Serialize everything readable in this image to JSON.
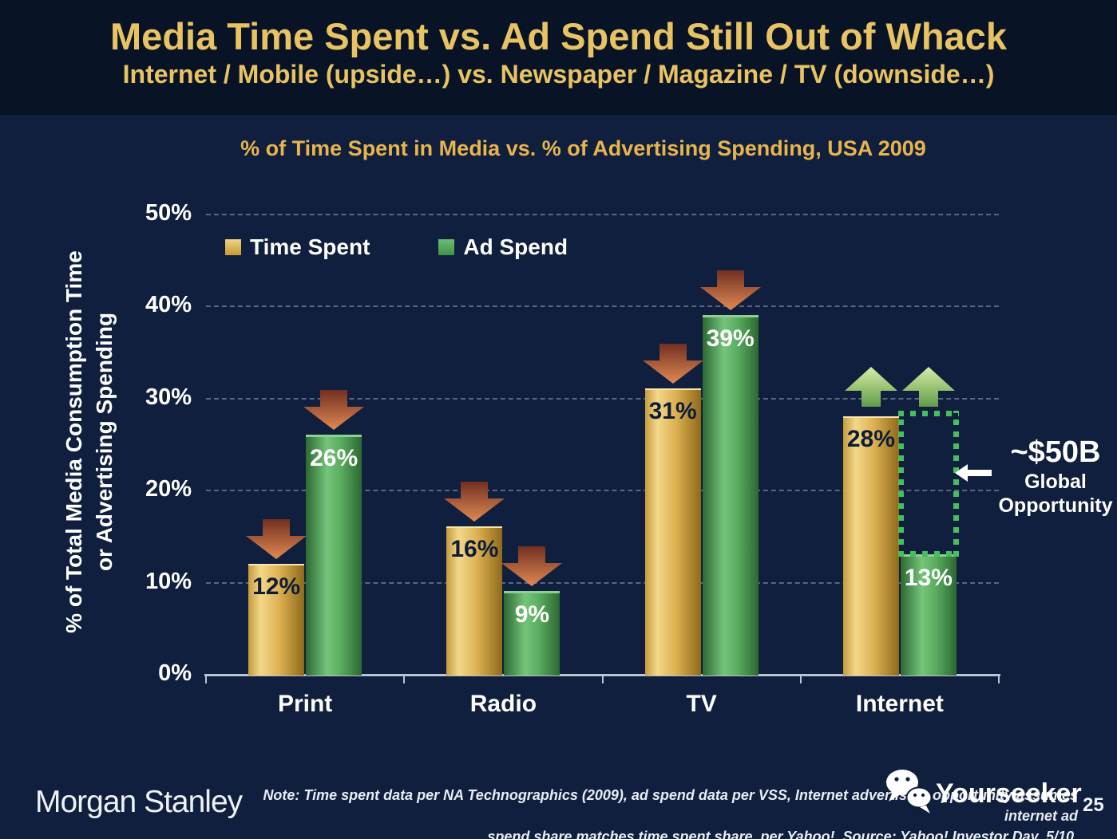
{
  "slide": {
    "title": "Media Time Spent vs. Ad Spend Still Out of Whack",
    "subtitle": "Internet / Mobile (upside…) vs. Newspaper / Magazine / TV (downside…)"
  },
  "chart_data": {
    "type": "bar",
    "title": "% of Time Spent in Media vs. % of Advertising Spending, USA 2009",
    "ylabel": [
      "% of Total Media Consumption Time",
      "or Advertising Spending"
    ],
    "categories": [
      "Print",
      "Radio",
      "TV",
      "Internet"
    ],
    "series": [
      {
        "name": "Time Spent",
        "values": [
          12,
          16,
          31,
          28
        ],
        "trend": [
          "down",
          "down",
          "down",
          "up"
        ]
      },
      {
        "name": "Ad Spend",
        "values": [
          26,
          9,
          39,
          13
        ],
        "trend": [
          "down",
          "down",
          "down",
          "up"
        ]
      }
    ],
    "ylim": [
      0,
      50
    ],
    "ytick_step": 10,
    "value_suffix": "%",
    "grid": "dashed-horizontal",
    "legend_position": "top-left-inside-plot",
    "annotation": {
      "callout_value": "~$50B",
      "callout_line1": "Global",
      "callout_line2": "Opportunity",
      "box": {
        "category": "Internet",
        "series": "Ad Spend",
        "from": 13,
        "to": 28
      }
    }
  },
  "footer": {
    "logo": "Morgan Stanley",
    "note_line1": "Note: Time spent data per NA Technographics (2009), ad spend data per VSS, Internet advertising opportunity assumes internet ad",
    "note_line2": "spend share matches time spent share, per Yahoo!. Source: Yahoo! Investor Day, 5/10.",
    "watermark_brand": "Yourseeker",
    "page_number": "25"
  },
  "colors": {
    "background": "#0f1f3d",
    "header_background": "#081426",
    "title_gold": "#e9c363",
    "chart_title_gold": "#e8b54d",
    "axis_gray": "#b9c3d6",
    "bar_gold": "#d4a53f",
    "bar_gold_light": "#f2d88a",
    "bar_gold_dark": "#8f6a1a",
    "bar_green": "#4da356",
    "bar_green_light": "#74c47a",
    "bar_green_dark": "#2c6833",
    "arrow_down_dark": "#722f21",
    "arrow_down_light": "#e08a52",
    "arrow_up_light": "#d9eda6",
    "arrow_up_dark": "#5f9c49",
    "box_green": "#46c05e",
    "value_label_dark": "#0e1c38"
  }
}
